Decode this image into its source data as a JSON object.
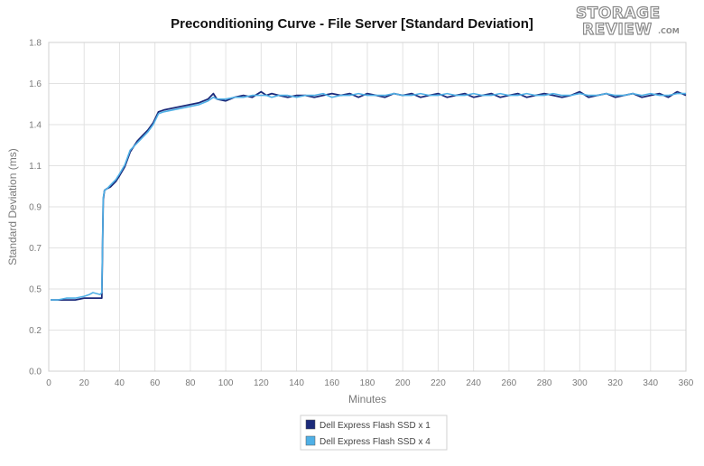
{
  "logo": {
    "line1": "STORAGE",
    "line2": "REVIEW",
    "suffix": ".COM"
  },
  "chart_data": {
    "type": "line",
    "title": "Preconditioning Curve - File Server [Standard Deviation]",
    "xlabel": "Minutes",
    "ylabel": "Standard Deviation (ms)",
    "xlim": [
      0,
      360
    ],
    "ylim": [
      0,
      1.8
    ],
    "x_ticks": [
      "0",
      "20",
      "40",
      "60",
      "80",
      "100",
      "120",
      "140",
      "160",
      "180",
      "200",
      "220",
      "240",
      "260",
      "280",
      "300",
      "320",
      "340",
      "360"
    ],
    "y_ticks": [
      "0.0",
      "0.2",
      "0.5",
      "0.7",
      "0.9",
      "1.1",
      "1.4",
      "1.6",
      "1.8"
    ],
    "grid": true,
    "legend_position": "bottom",
    "series": [
      {
        "name": "Dell Express Flash SSD x 1",
        "color": "#1b2a7a",
        "x": [
          1,
          5,
          10,
          15,
          20,
          25,
          29,
          30,
          30.8,
          31.5,
          33,
          35,
          38,
          40,
          43,
          46,
          50,
          53,
          56,
          59,
          62,
          65,
          70,
          75,
          80,
          85,
          90,
          93,
          95,
          100,
          105,
          110,
          115,
          120,
          123,
          126,
          130,
          135,
          140,
          145,
          150,
          155,
          160,
          165,
          170,
          175,
          180,
          185,
          190,
          195,
          200,
          205,
          210,
          215,
          220,
          225,
          230,
          235,
          240,
          245,
          250,
          255,
          260,
          265,
          270,
          275,
          280,
          285,
          290,
          295,
          300,
          305,
          310,
          315,
          320,
          325,
          330,
          335,
          340,
          345,
          350,
          355,
          360
        ],
        "values": [
          0.39,
          0.39,
          0.39,
          0.39,
          0.4,
          0.4,
          0.4,
          0.4,
          0.94,
          0.99,
          1.0,
          1.01,
          1.04,
          1.07,
          1.12,
          1.2,
          1.26,
          1.29,
          1.32,
          1.36,
          1.42,
          1.43,
          1.44,
          1.45,
          1.46,
          1.47,
          1.49,
          1.52,
          1.49,
          1.48,
          1.5,
          1.51,
          1.5,
          1.53,
          1.51,
          1.52,
          1.51,
          1.5,
          1.51,
          1.51,
          1.5,
          1.51,
          1.52,
          1.51,
          1.52,
          1.5,
          1.52,
          1.51,
          1.5,
          1.52,
          1.51,
          1.52,
          1.5,
          1.51,
          1.52,
          1.5,
          1.51,
          1.52,
          1.5,
          1.51,
          1.52,
          1.5,
          1.51,
          1.52,
          1.5,
          1.51,
          1.52,
          1.51,
          1.5,
          1.51,
          1.53,
          1.5,
          1.51,
          1.52,
          1.5,
          1.51,
          1.52,
          1.5,
          1.51,
          1.52,
          1.5,
          1.53,
          1.51
        ]
      },
      {
        "name": "Dell Express Flash SSD x 4",
        "color": "#4fb0e6",
        "x": [
          1,
          5,
          10,
          15,
          20,
          23,
          25,
          29,
          30,
          30.8,
          31.5,
          33,
          35,
          38,
          40,
          43,
          46,
          50,
          53,
          56,
          59,
          62,
          65,
          70,
          75,
          80,
          85,
          90,
          93,
          95,
          100,
          105,
          110,
          115,
          120,
          123,
          126,
          130,
          135,
          140,
          145,
          150,
          155,
          160,
          165,
          170,
          175,
          180,
          185,
          190,
          195,
          200,
          205,
          210,
          215,
          220,
          225,
          230,
          235,
          240,
          245,
          250,
          255,
          260,
          265,
          270,
          275,
          280,
          285,
          290,
          295,
          300,
          305,
          310,
          315,
          320,
          325,
          330,
          335,
          340,
          345,
          350,
          355,
          360
        ],
        "values": [
          0.39,
          0.39,
          0.4,
          0.4,
          0.41,
          0.42,
          0.43,
          0.42,
          0.43,
          0.95,
          0.99,
          1.0,
          1.02,
          1.05,
          1.08,
          1.13,
          1.21,
          1.25,
          1.28,
          1.31,
          1.35,
          1.41,
          1.42,
          1.43,
          1.44,
          1.45,
          1.46,
          1.48,
          1.5,
          1.49,
          1.49,
          1.5,
          1.5,
          1.51,
          1.51,
          1.51,
          1.5,
          1.51,
          1.51,
          1.5,
          1.51,
          1.51,
          1.52,
          1.5,
          1.51,
          1.51,
          1.52,
          1.51,
          1.51,
          1.51,
          1.52,
          1.51,
          1.51,
          1.52,
          1.51,
          1.51,
          1.52,
          1.51,
          1.51,
          1.52,
          1.51,
          1.51,
          1.52,
          1.51,
          1.51,
          1.52,
          1.51,
          1.51,
          1.52,
          1.51,
          1.51,
          1.52,
          1.51,
          1.51,
          1.52,
          1.51,
          1.51,
          1.52,
          1.51,
          1.52,
          1.51,
          1.51,
          1.52,
          1.52
        ]
      }
    ]
  }
}
